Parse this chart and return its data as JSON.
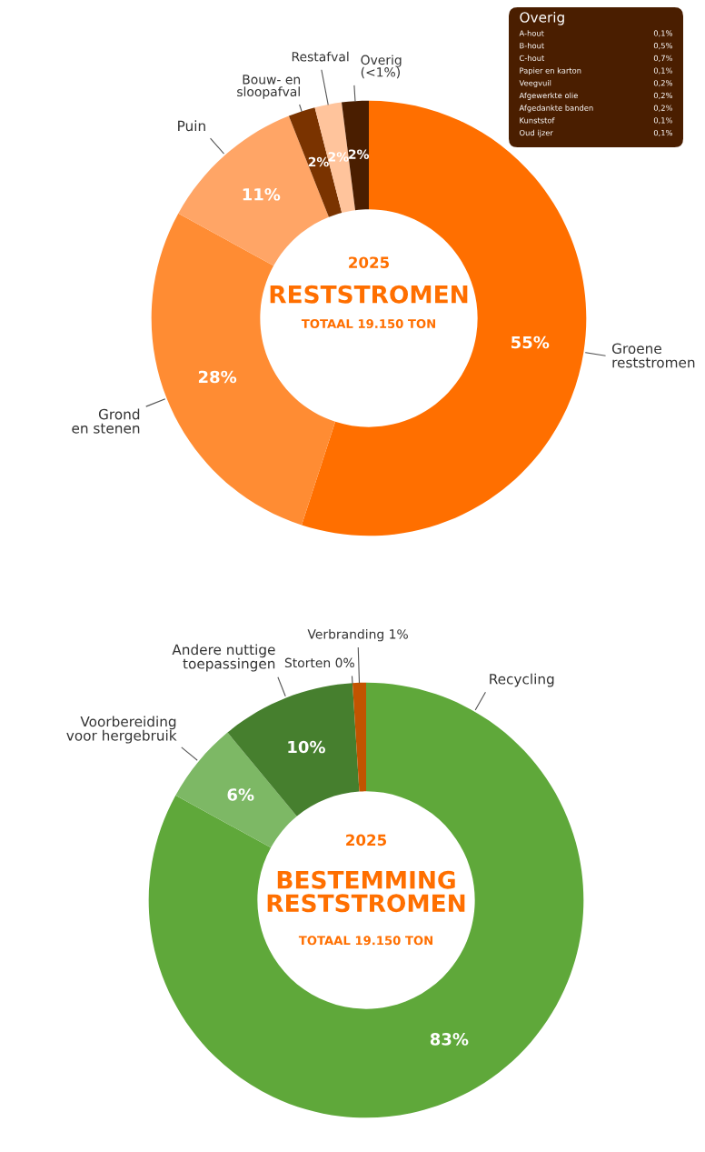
{
  "chart_data": [
    {
      "type": "donut",
      "title": "RESTSTROMEN",
      "subtitle": "TOTAAL 19.150 TON",
      "annotations": [
        "2025"
      ],
      "categories": [
        "Groene\nreststromen",
        "Grond\nen stenen",
        "Puin",
        "Bouw- en\nsloopafval",
        "Restafval",
        "Overig\n(<1%)"
      ],
      "values": [
        55,
        28,
        11,
        2,
        2,
        2
      ],
      "value_labels": [
        "55%",
        "28%",
        "11%",
        "2%",
        "2%",
        "2%"
      ],
      "colors": [
        "#ff6f00",
        "#ff8c33",
        "#ffa566",
        "#7a3300",
        "#ffc49c",
        "#4a1e00"
      ]
    },
    {
      "type": "other",
      "title": "Overig",
      "color": "#4a1e00",
      "categories": [
        "A-hout",
        "B-hout",
        "C-hout",
        "Papier en karton",
        "Veegvuil",
        "Afgewerkte olie",
        "Afgedankte banden",
        "Kunststof",
        "Oud ijzer"
      ],
      "value_labels": [
        "0,1%",
        "0,5%",
        "0,7%",
        "0,1%",
        "0,2%",
        "0,2%",
        "0,2%",
        "0,1%",
        "0,1%"
      ]
    },
    {
      "type": "donut",
      "title": "BESTEMMING\nRESTSTROMEN",
      "subtitle": "TOTAAL 19.150 TON",
      "annotations": [
        "2025"
      ],
      "categories": [
        "Recycling",
        "Voorbereiding\nvoor hergebruik",
        "Andere nuttige\ntoepassingen",
        "Storten 0%",
        "Verbranding 1%"
      ],
      "values": [
        83,
        6,
        10,
        0,
        1
      ],
      "value_labels": [
        "83%",
        "6%",
        "10%",
        null,
        null
      ],
      "colors": [
        "#5fa83a",
        "#7db865",
        "#467f2e",
        "#ff6f00",
        "#c25400"
      ]
    }
  ]
}
